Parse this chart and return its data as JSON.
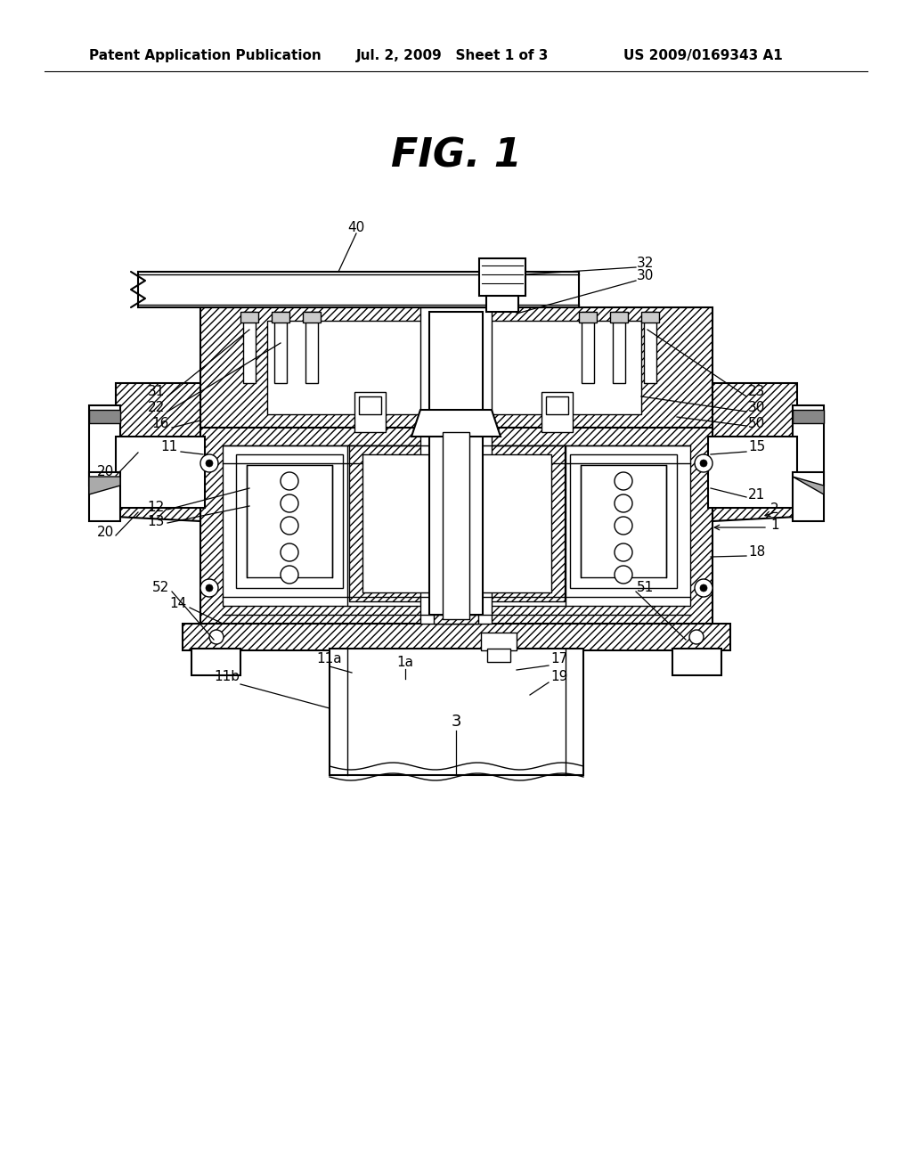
{
  "background_color": "#ffffff",
  "header_left": "Patent Application Publication",
  "header_center": "Jul. 2, 2009   Sheet 1 of 3",
  "header_right": "US 2009/0169343 A1",
  "fig_title": "FIG. 1",
  "header_fontsize": 11,
  "title_fontsize": 32,
  "label_fontsize": 11,
  "line_color": "#000000"
}
